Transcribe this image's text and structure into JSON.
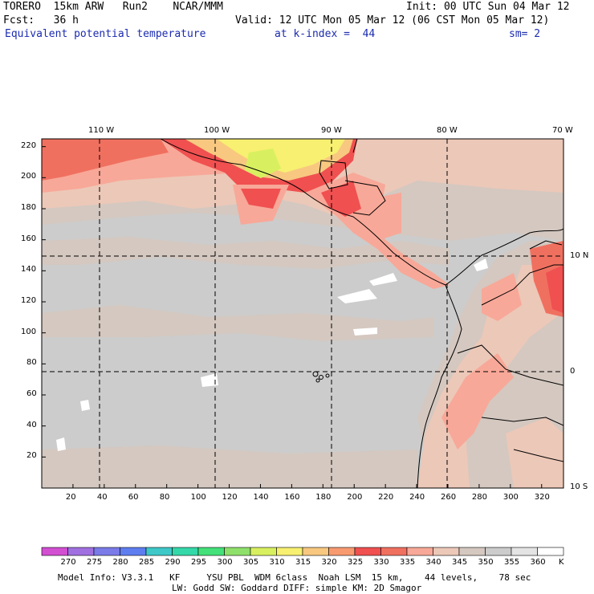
{
  "header": {
    "model": "TORERO  15km ARW   Run2    NCAR/MMM",
    "init": "Init: 00 UTC Sun 04 Mar 12",
    "fcst": "Fcst:   36 h",
    "valid": "Valid: 12 UTC Mon 05 Mar 12 (06 CST Mon 05 Mar 12)",
    "field": "Equivalent potential temperature",
    "level": "at k-index =  44",
    "smooth": "sm= 2"
  },
  "map": {
    "lon_labels": [
      "110 W",
      "100 W",
      "90 W",
      "80 W",
      "70 W"
    ],
    "lat_labels": [
      "10 N",
      "0",
      "10 S"
    ],
    "x_ticks": [
      "20",
      "40",
      "60",
      "80",
      "100",
      "120",
      "140",
      "160",
      "180",
      "200",
      "220",
      "240",
      "260",
      "280",
      "300",
      "320"
    ],
    "y_ticks": [
      "20",
      "40",
      "60",
      "80",
      "100",
      "120",
      "140",
      "160",
      "180",
      "200",
      "220"
    ],
    "x_range": [
      0,
      334
    ],
    "y_range": [
      0,
      225
    ]
  },
  "colorbar": {
    "levels": [
      "270",
      "275",
      "280",
      "285",
      "290",
      "295",
      "300",
      "305",
      "310",
      "315",
      "320",
      "325",
      "330",
      "335",
      "340",
      "345",
      "350",
      "355",
      "360"
    ],
    "unit": "K",
    "colors": [
      "#d24fd2",
      "#a070e0",
      "#7a7ae8",
      "#5e7ef0",
      "#3ec8c8",
      "#35d8a8",
      "#44e07a",
      "#8ee06a",
      "#d8f060",
      "#f8f070",
      "#f8c880",
      "#f89a70",
      "#f05050",
      "#f07060",
      "#f8a898",
      "#ecc8b8",
      "#d4c8c0",
      "#cccccc",
      "#e4e4e4",
      "#ffffff"
    ]
  },
  "footer": {
    "line1": "Model Info: V3.3.1   KF     YSU PBL  WDM 6class  Noah LSM  15 km,    44 levels,    78 sec",
    "line2": "LW: Godd SW: Goddard DIFF: simple KM: 2D Smagor"
  }
}
